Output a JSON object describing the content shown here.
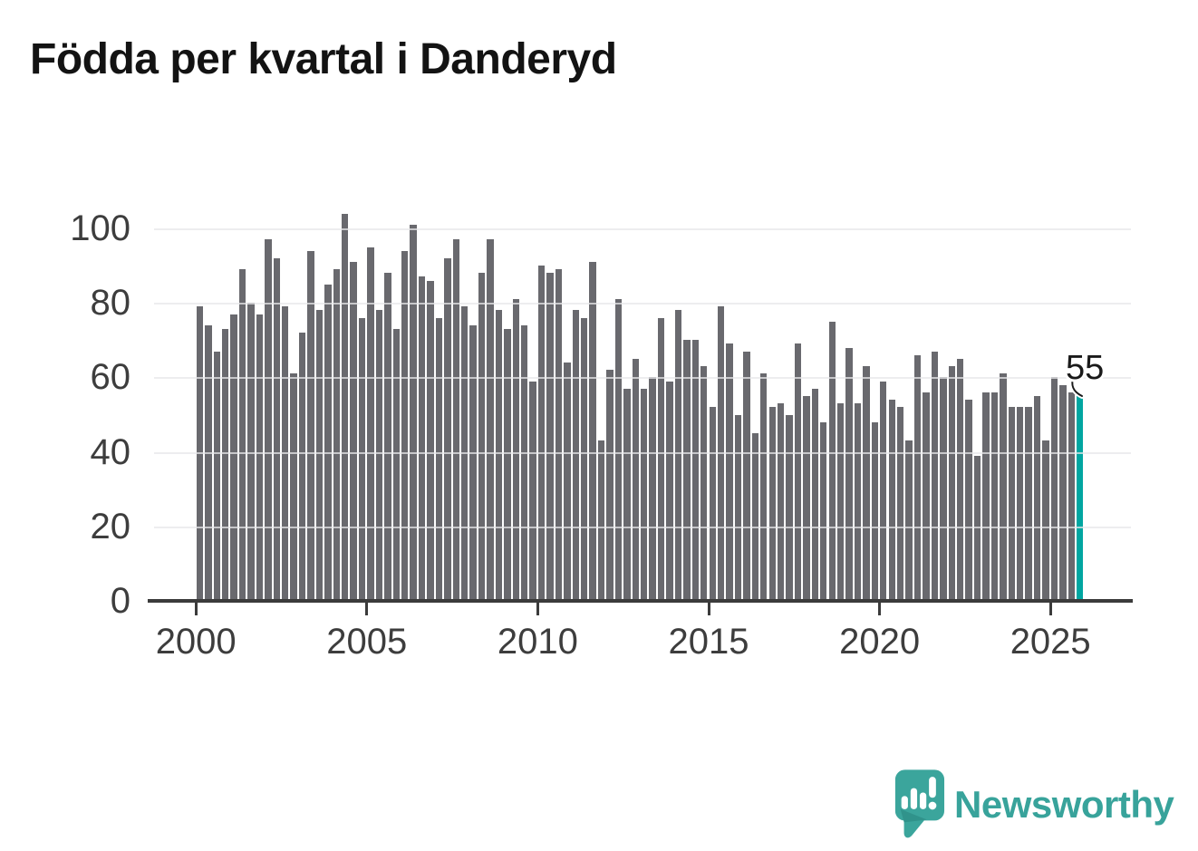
{
  "title": "Födda per kvartal i Danderyd",
  "annotation": {
    "label": "55"
  },
  "footer": {
    "brand": "Newsworthy"
  },
  "colors": {
    "bar": "#69696e",
    "highlight": "#00a6a1",
    "axis": "#3b3b3b",
    "grid": "#e7e7ea",
    "tick_text": "#3d3d3d",
    "title_text": "#131313",
    "brand": "#38a39b",
    "logo_bubble": "#3ba59c",
    "logo_bubble_shadow": "#2f8f88"
  },
  "chart_data": {
    "type": "bar",
    "title": "Födda per kvartal i Danderyd",
    "x_frequency": "quarterly",
    "x_start": "2000 Q1",
    "x_end": "2025 Q4",
    "x_tick_labels": [
      "2000",
      "2005",
      "2010",
      "2015",
      "2020",
      "2025"
    ],
    "y_tick_labels": [
      "0",
      "20",
      "40",
      "60",
      "80",
      "100"
    ],
    "ylim": [
      0,
      105
    ],
    "grid": true,
    "legend": "none",
    "highlight_last_bar": true,
    "highlight_last_value": 55,
    "values": [
      79,
      74,
      67,
      73,
      77,
      89,
      80,
      77,
      97,
      92,
      79,
      61,
      72,
      94,
      78,
      85,
      89,
      104,
      91,
      76,
      95,
      78,
      88,
      73,
      94,
      101,
      87,
      86,
      76,
      92,
      97,
      79,
      74,
      88,
      97,
      78,
      73,
      81,
      74,
      59,
      90,
      88,
      89,
      64,
      78,
      76,
      91,
      43,
      62,
      81,
      57,
      65,
      57,
      60,
      76,
      59,
      78,
      70,
      70,
      63,
      52,
      79,
      69,
      50,
      67,
      45,
      61,
      52,
      53,
      50,
      69,
      55,
      57,
      48,
      75,
      53,
      68,
      53,
      63,
      48,
      59,
      54,
      52,
      43,
      66,
      56,
      67,
      60,
      63,
      65,
      54,
      39,
      56,
      56,
      61,
      52,
      52,
      52,
      55,
      43,
      60,
      58,
      56,
      55
    ]
  }
}
